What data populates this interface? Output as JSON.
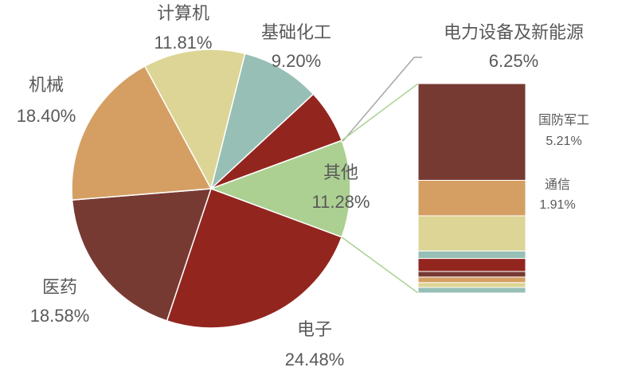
{
  "chart_data": {
    "type": "pie-of-bar",
    "categories": [
      "计算机",
      "基础化工",
      "电力设备及新能源",
      "其他",
      "电子",
      "医药",
      "机械"
    ],
    "values": [
      11.81,
      9.2,
      6.25,
      11.28,
      24.48,
      18.58,
      18.4
    ],
    "value_labels": [
      "11.81%",
      "9.20%",
      "6.25%",
      "11.28%",
      "24.48%",
      "18.58%",
      "18.40%"
    ],
    "colors": [
      "#dcd595",
      "#97bfb5",
      "#92261f",
      "#acd092",
      "#92261f",
      "#773a33",
      "#d59f63"
    ],
    "breakdown": {
      "categories": [
        "国防军工",
        "通信",
        null,
        null,
        null,
        null,
        null,
        null,
        null
      ],
      "values": [
        5.21,
        1.91,
        1.9,
        0.4,
        0.7,
        0.3,
        0.3,
        0.26,
        0.3
      ],
      "value_labels": [
        "5.21%",
        "1.91%",
        null,
        null,
        null,
        null,
        null,
        null,
        null
      ],
      "colors": [
        "#773a33",
        "#d59f63",
        "#dcd595",
        "#97bfb5",
        "#92261f",
        "#773a33",
        "#d59f63",
        "#dcd595",
        "#97bfb5"
      ]
    }
  }
}
